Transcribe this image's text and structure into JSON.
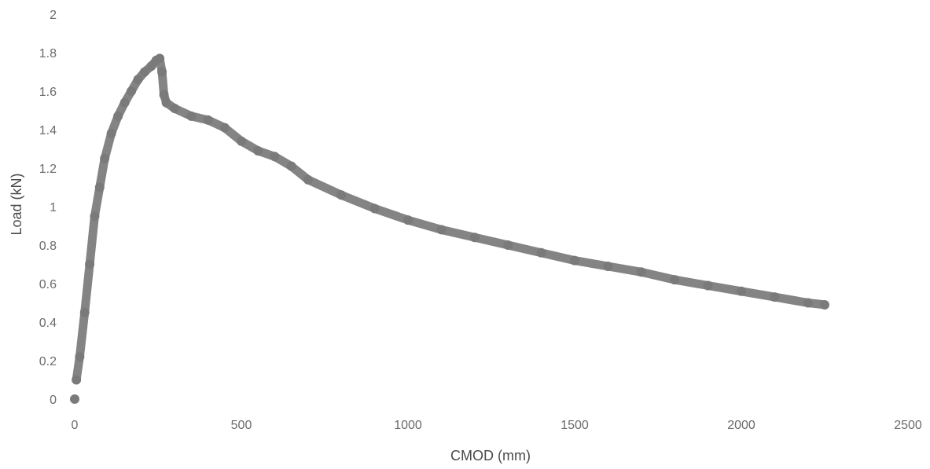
{
  "chart_data": {
    "type": "scatter",
    "title": "",
    "xlabel": "CMOD (mm)",
    "ylabel": "Load (kN)",
    "xlim": [
      0,
      2500
    ],
    "ylim": [
      0,
      2
    ],
    "x_ticks": [
      "0",
      "500",
      "1000",
      "1500",
      "2000",
      "2500"
    ],
    "y_ticks": [
      "0",
      "0.2",
      "0.4",
      "0.6",
      "0.8",
      "1",
      "1.2",
      "1.4",
      "1.6",
      "1.8",
      "2"
    ],
    "grid": false,
    "legend": "none",
    "marker_color": "#7a7a7a",
    "series": [
      {
        "points": [
          [
            0,
            0
          ],
          [
            5,
            0.1
          ],
          [
            15,
            0.22
          ],
          [
            30,
            0.45
          ],
          [
            45,
            0.7
          ],
          [
            60,
            0.95
          ],
          [
            75,
            1.1
          ],
          [
            90,
            1.25
          ],
          [
            110,
            1.38
          ],
          [
            130,
            1.47
          ],
          [
            150,
            1.54
          ],
          [
            170,
            1.6
          ],
          [
            190,
            1.66
          ],
          [
            210,
            1.7
          ],
          [
            230,
            1.73
          ],
          [
            245,
            1.76
          ],
          [
            255,
            1.77
          ],
          [
            262,
            1.7
          ],
          [
            268,
            1.58
          ],
          [
            275,
            1.54
          ],
          [
            300,
            1.51
          ],
          [
            350,
            1.47
          ],
          [
            400,
            1.45
          ],
          [
            450,
            1.41
          ],
          [
            500,
            1.34
          ],
          [
            550,
            1.29
          ],
          [
            600,
            1.26
          ],
          [
            650,
            1.21
          ],
          [
            700,
            1.14
          ],
          [
            800,
            1.06
          ],
          [
            900,
            0.99
          ],
          [
            1000,
            0.93
          ],
          [
            1100,
            0.88
          ],
          [
            1200,
            0.84
          ],
          [
            1300,
            0.8
          ],
          [
            1400,
            0.76
          ],
          [
            1500,
            0.72
          ],
          [
            1600,
            0.69
          ],
          [
            1700,
            0.66
          ],
          [
            1800,
            0.62
          ],
          [
            1900,
            0.59
          ],
          [
            2000,
            0.56
          ],
          [
            2100,
            0.53
          ],
          [
            2200,
            0.5
          ],
          [
            2250,
            0.49
          ]
        ]
      }
    ]
  }
}
